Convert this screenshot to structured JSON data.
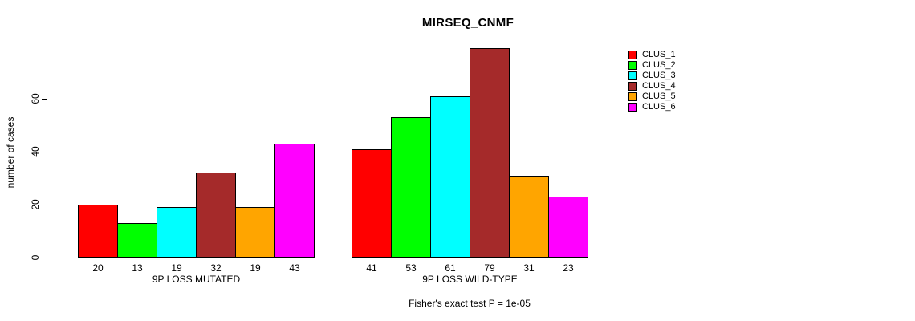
{
  "chart": {
    "title": "MIRSEQ_CNMF",
    "ylabel": "number of cases",
    "footer": "Fisher's exact test P = 1e-05"
  },
  "chart_data": {
    "type": "bar",
    "title": "MIRSEQ_CNMF",
    "xlabel": "",
    "ylabel": "number of cases",
    "annotation": "Fisher's exact test P = 1e-05",
    "yticks": [
      0,
      20,
      40,
      60
    ],
    "ylim": [
      0,
      79
    ],
    "grid": false,
    "legend_position": "right",
    "groups": [
      {
        "label": "9P LOSS MUTATED",
        "values": [
          20,
          13,
          19,
          32,
          19,
          43
        ]
      },
      {
        "label": "9P LOSS WILD-TYPE",
        "values": [
          41,
          53,
          61,
          79,
          31,
          23
        ]
      }
    ],
    "series": [
      {
        "name": "CLUS_1",
        "color": "#FF0000"
      },
      {
        "name": "CLUS_2",
        "color": "#00FF00"
      },
      {
        "name": "CLUS_3",
        "color": "#00FFFF"
      },
      {
        "name": "CLUS_4",
        "color": "#A52A2A"
      },
      {
        "name": "CLUS_5",
        "color": "#FFA500"
      },
      {
        "name": "CLUS_6",
        "color": "#FF00FF"
      }
    ]
  }
}
